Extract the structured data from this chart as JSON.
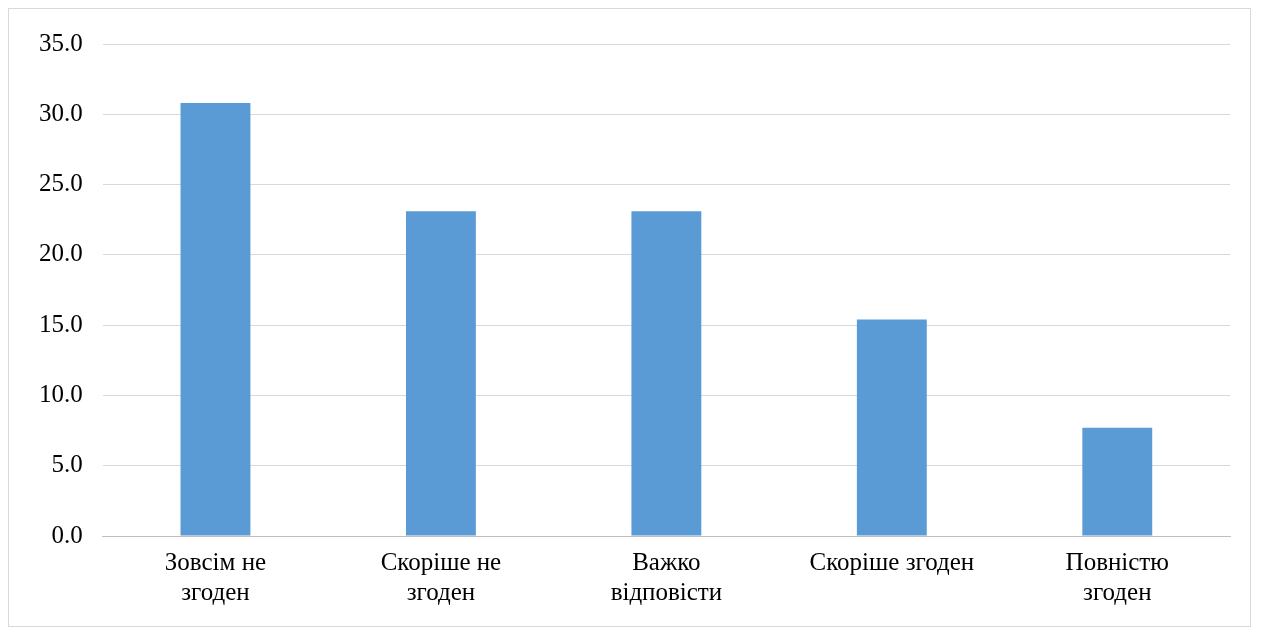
{
  "chart_data": {
    "type": "bar",
    "categories": [
      "Зовсім не згоден",
      "Скоріше не згоден",
      "Важко відповісти",
      "Скоріше згоден",
      "Повністю згоден"
    ],
    "values": [
      30.8,
      23.1,
      23.1,
      15.4,
      7.7
    ],
    "color": "#5b9bd5",
    "ylim": [
      0,
      35
    ],
    "yticks": [
      {
        "value": 0,
        "label": "0.0"
      },
      {
        "value": 5,
        "label": "5.0"
      },
      {
        "value": 10,
        "label": "10.0"
      },
      {
        "value": 15,
        "label": "15.0"
      },
      {
        "value": 20,
        "label": "20.0"
      },
      {
        "value": 25,
        "label": "25.0"
      },
      {
        "value": 30,
        "label": "30.0"
      },
      {
        "value": 35,
        "label": "35.0"
      }
    ],
    "grid": "y",
    "legend": false
  }
}
